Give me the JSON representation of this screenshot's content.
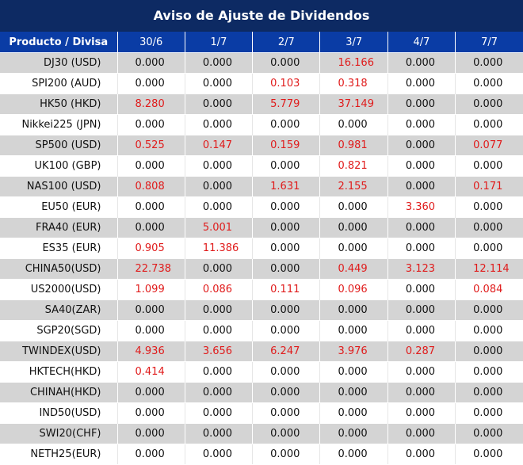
{
  "title": "Aviso de Ajuste de Dividendos",
  "header": {
    "product": "Producto / Divisa",
    "dates": [
      "30/6",
      "1/7",
      "2/7",
      "3/7",
      "4/7",
      "7/7"
    ]
  },
  "colors": {
    "title_bg": "#0d2a63",
    "header_bg": "#0a3ca5",
    "stripe": "#d4d4d4",
    "highlight": "#e01b1b"
  },
  "rows": [
    {
      "product": "DJ30 (USD)",
      "values": [
        "0.000",
        "0.000",
        "0.000",
        "16.166",
        "0.000",
        "0.000"
      ]
    },
    {
      "product": "SPI200 (AUD)",
      "values": [
        "0.000",
        "0.000",
        "0.103",
        "0.318",
        "0.000",
        "0.000"
      ]
    },
    {
      "product": "HK50 (HKD)",
      "values": [
        "8.280",
        "0.000",
        "5.779",
        "37.149",
        "0.000",
        "0.000"
      ]
    },
    {
      "product": "Nikkei225 (JPN)",
      "values": [
        "0.000",
        "0.000",
        "0.000",
        "0.000",
        "0.000",
        "0.000"
      ]
    },
    {
      "product": "SP500 (USD)",
      "values": [
        "0.525",
        "0.147",
        "0.159",
        "0.981",
        "0.000",
        "0.077"
      ]
    },
    {
      "product": "UK100 (GBP)",
      "values": [
        "0.000",
        "0.000",
        "0.000",
        "0.821",
        "0.000",
        "0.000"
      ]
    },
    {
      "product": "NAS100 (USD)",
      "values": [
        "0.808",
        "0.000",
        "1.631",
        "2.155",
        "0.000",
        "0.171"
      ]
    },
    {
      "product": "EU50 (EUR)",
      "values": [
        "0.000",
        "0.000",
        "0.000",
        "0.000",
        "3.360",
        "0.000"
      ]
    },
    {
      "product": "FRA40 (EUR)",
      "values": [
        "0.000",
        "5.001",
        "0.000",
        "0.000",
        "0.000",
        "0.000"
      ]
    },
    {
      "product": "ES35 (EUR)",
      "values": [
        "0.905",
        "11.386",
        "0.000",
        "0.000",
        "0.000",
        "0.000"
      ]
    },
    {
      "product": "CHINA50(USD)",
      "values": [
        "22.738",
        "0.000",
        "0.000",
        "0.449",
        "3.123",
        "12.114"
      ]
    },
    {
      "product": "US2000(USD)",
      "values": [
        "1.099",
        "0.086",
        "0.111",
        "0.096",
        "0.000",
        "0.084"
      ]
    },
    {
      "product": "SA40(ZAR)",
      "values": [
        "0.000",
        "0.000",
        "0.000",
        "0.000",
        "0.000",
        "0.000"
      ]
    },
    {
      "product": "SGP20(SGD)",
      "values": [
        "0.000",
        "0.000",
        "0.000",
        "0.000",
        "0.000",
        "0.000"
      ]
    },
    {
      "product": "TWINDEX(USD)",
      "values": [
        "4.936",
        "3.656",
        "6.247",
        "3.976",
        "0.287",
        "0.000"
      ]
    },
    {
      "product": "HKTECH(HKD)",
      "values": [
        "0.414",
        "0.000",
        "0.000",
        "0.000",
        "0.000",
        "0.000"
      ]
    },
    {
      "product": "CHINAH(HKD)",
      "values": [
        "0.000",
        "0.000",
        "0.000",
        "0.000",
        "0.000",
        "0.000"
      ]
    },
    {
      "product": "IND50(USD)",
      "values": [
        "0.000",
        "0.000",
        "0.000",
        "0.000",
        "0.000",
        "0.000"
      ]
    },
    {
      "product": "SWI20(CHF)",
      "values": [
        "0.000",
        "0.000",
        "0.000",
        "0.000",
        "0.000",
        "0.000"
      ]
    },
    {
      "product": "NETH25(EUR)",
      "values": [
        "0.000",
        "0.000",
        "0.000",
        "0.000",
        "0.000",
        "0.000"
      ]
    }
  ]
}
